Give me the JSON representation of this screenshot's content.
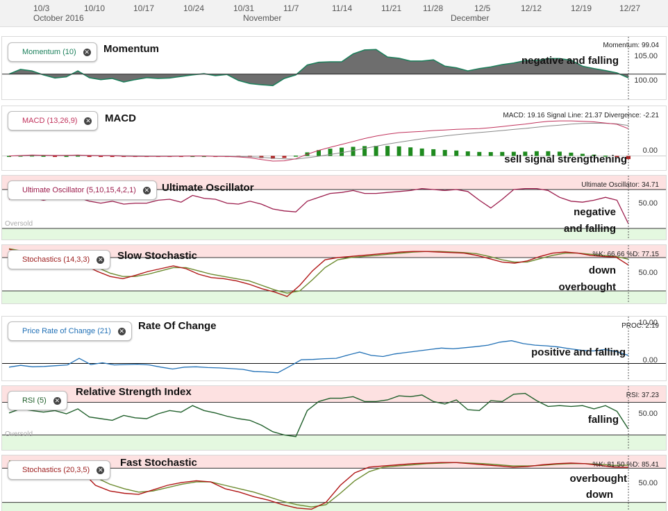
{
  "top_axis": {
    "ticks": [
      "10/3",
      "10/10",
      "10/17",
      "10/24",
      "10/31",
      "11/7",
      "11/14",
      "11/21",
      "11/28",
      "12/5",
      "12/12",
      "12/19",
      "12/27"
    ],
    "months": [
      "October 2016",
      "November",
      "December"
    ]
  },
  "panels": {
    "momentum": {
      "chip": "Momentum (10)",
      "title": "Momentum",
      "readout": "Momentum: 99.04",
      "note": "negative and falling",
      "ylabels": [
        "105.00",
        "100.00"
      ],
      "color": "#1a7f5a"
    },
    "macd": {
      "chip": "MACD (13,26,9)",
      "title": "MACD",
      "readout": "MACD: 19.16 Signal Line: 21.37 Divergence: -2.21",
      "note": "sell signal strengthening",
      "ylabels": [
        "0.00"
      ],
      "color": "#c0305a"
    },
    "ultimate": {
      "chip": "Ultimate Oscillator (5,10,15,4,2,1)",
      "title": "Ultimate Oscillator",
      "readout": "Ultimate Oscillator: 34.71",
      "note_lines": [
        "negative",
        "and falling"
      ],
      "ylabels": [
        "50.00"
      ],
      "zone": "Oversold",
      "color": "#9b1b4b"
    },
    "slowstoch": {
      "chip": "Stochastics (14,3,3)",
      "title": "Slow Stochastic",
      "readout": "%K: 66.66 %D: 77.15",
      "note_lines": [
        "down",
        "overbought"
      ],
      "ylabels": [
        "50.00"
      ],
      "color": "#9b1b1b"
    },
    "proc": {
      "chip": "Price Rate of Change (21)",
      "title": "Rate Of Change",
      "readout": "PROC: 2.19",
      "note": "positive and falling",
      "ylabels": [
        "10.00",
        "0.00"
      ],
      "color": "#1f6fb5"
    },
    "rsi": {
      "chip": "RSI (5)",
      "title": "Relative Strength Index",
      "readout": "RSI: 37.23",
      "note": "falling",
      "ylabels": [
        "50.00"
      ],
      "zone": "Oversold",
      "color": "#1f5f2a"
    },
    "faststoch": {
      "chip": "Stochastics (20,3,5)",
      "title": "Fast Stochastic",
      "readout": "%K: 81.50 %D: 85.41",
      "note_lines": [
        "overbought",
        "down"
      ],
      "ylabels": [
        "50.00"
      ],
      "color": "#9b1b1b"
    }
  },
  "chart_data": [
    {
      "type": "area",
      "name": "Momentum (10)",
      "ylim": [
        94,
        108
      ],
      "baseline": 100,
      "values": [
        100,
        101.2,
        100.8,
        99.8,
        99.0,
        99.3,
        100.8,
        99.1,
        98.6,
        98.9,
        98.0,
        98.6,
        99.1,
        98.9,
        99.0,
        99.4,
        99.8,
        100.1,
        99.6,
        99.9,
        98.4,
        97.6,
        97.3,
        97.1,
        98.9,
        99.8,
        102.3,
        103.0,
        103.1,
        103.1,
        105.1,
        106.1,
        106.2,
        104.3,
        104.0,
        103.3,
        103.3,
        103.6,
        102.0,
        101.6,
        100.8,
        101.4,
        101.8,
        102.4,
        102.8,
        103.4,
        103.4,
        103.9,
        103.9,
        103.5,
        102.0,
        101.4,
        100.9,
        100.3,
        99.04
      ]
    },
    {
      "type": "line",
      "name": "MACD (13,26,9)",
      "ylim": [
        -8,
        30
      ],
      "series": [
        {
          "name": "MACD",
          "values": [
            0,
            0.3,
            0.6,
            0.5,
            0.3,
            0.4,
            0.6,
            0.3,
            0.1,
            0.1,
            -0.2,
            -0.3,
            -0.3,
            -0.3,
            -0.3,
            -0.2,
            -0.1,
            -0.1,
            -0.3,
            -0.4,
            -0.7,
            -1.3,
            -2.5,
            -3.6,
            -3.4,
            -2,
            1.2,
            3.9,
            6.1,
            8.1,
            10.1,
            12.2,
            13.9,
            15.3,
            16.3,
            16.8,
            17.2,
            17.8,
            18.2,
            18.7,
            18.9,
            19.2,
            19.8,
            20.6,
            21.5,
            22.3,
            23.4,
            24.3,
            24.6,
            24.6,
            24.3,
            23.9,
            23.1,
            22.2,
            19.16
          ]
        },
        {
          "name": "Signal Line",
          "values": [
            0,
            0.1,
            0.3,
            0.4,
            0.4,
            0.4,
            0.4,
            0.4,
            0.3,
            0.3,
            0.2,
            0.1,
            0.0,
            -0.1,
            -0.1,
            -0.1,
            -0.1,
            -0.1,
            -0.2,
            -0.2,
            -0.4,
            -0.6,
            -1.0,
            -1.6,
            -2.0,
            -2.2,
            -1.3,
            -0.2,
            1.0,
            2.3,
            3.7,
            5.3,
            6.8,
            8.3,
            9.6,
            10.8,
            12.0,
            13.1,
            14.0,
            14.9,
            15.7,
            16.4,
            17.1,
            17.8,
            18.6,
            19.3,
            20.1,
            21.0,
            21.6,
            22.3,
            22.8,
            23.0,
            22.9,
            22.5,
            21.37
          ]
        },
        {
          "name": "Divergence",
          "values": [
            0,
            0.2,
            0.3,
            0.1,
            -0.1,
            0,
            0.2,
            -0.1,
            -0.2,
            -0.2,
            -0.4,
            -0.4,
            -0.3,
            -0.2,
            -0.2,
            -0.1,
            0,
            0,
            -0.1,
            -0.2,
            -0.3,
            -0.7,
            -1.5,
            -2.0,
            -1.4,
            0.2,
            2.5,
            4.1,
            5.1,
            5.8,
            6.4,
            6.9,
            7.1,
            7.0,
            6.7,
            6.0,
            5.2,
            4.7,
            4.2,
            3.8,
            3.2,
            2.8,
            2.7,
            2.8,
            2.9,
            3.0,
            3.3,
            3.3,
            3.0,
            2.3,
            1.5,
            0.9,
            0.2,
            -0.3,
            -2.21
          ]
        }
      ]
    },
    {
      "type": "line",
      "name": "Ultimate Oscillator (5,10,15,4,2,1)",
      "ylim": [
        20,
        80
      ],
      "values": [
        60,
        64,
        62,
        59,
        62,
        60,
        62,
        58,
        56,
        58,
        55,
        56,
        56,
        59,
        60,
        57,
        64,
        61,
        60,
        56,
        55,
        58,
        55,
        50,
        48,
        47,
        58,
        62,
        66,
        67,
        69,
        66,
        66,
        67,
        68,
        69,
        71,
        70,
        69,
        70,
        68,
        59,
        51,
        60,
        70,
        71,
        71,
        69,
        62,
        58,
        57,
        59,
        62,
        59,
        34.71
      ]
    },
    {
      "type": "line",
      "name": "Stochastics (14,3,3)",
      "ylim": [
        0,
        100
      ],
      "series": [
        {
          "name": "%K",
          "values": [
            95,
            90,
            82,
            80,
            78,
            72,
            66,
            55,
            46,
            42,
            48,
            55,
            60,
            65,
            60,
            50,
            44,
            42,
            38,
            32,
            24,
            18,
            10,
            30,
            56,
            76,
            80,
            82,
            84,
            86,
            88,
            90,
            91,
            91,
            90,
            89,
            88,
            84,
            78,
            72,
            70,
            74,
            82,
            88,
            90,
            88,
            84,
            82,
            81,
            66.66
          ]
        },
        {
          "name": "%D",
          "values": [
            96,
            92,
            86,
            82,
            80,
            76,
            70,
            62,
            52,
            46,
            46,
            50,
            56,
            62,
            62,
            56,
            50,
            46,
            42,
            38,
            30,
            22,
            16,
            20,
            40,
            62,
            76,
            80,
            82,
            84,
            86,
            88,
            90,
            91,
            91,
            90,
            89,
            87,
            82,
            76,
            72,
            72,
            78,
            84,
            88,
            88,
            86,
            84,
            82,
            77.15
          ]
        }
      ]
    },
    {
      "type": "line",
      "name": "Price Rate of Change (21)",
      "ylim": [
        -5,
        12
      ],
      "values": [
        -1.0,
        -0.5,
        -0.9,
        -0.8,
        -0.6,
        -0.4,
        1.4,
        -0.3,
        0.2,
        -0.4,
        -0.3,
        -0.2,
        -0.4,
        -1.0,
        -1.5,
        -1.0,
        -0.9,
        -1.1,
        -1.2,
        -1.4,
        -1.6,
        -2.2,
        -2.3,
        -2.5,
        -0.8,
        1.0,
        1.1,
        1.3,
        1.4,
        2.3,
        3.1,
        2.2,
        1.9,
        2.6,
        3.0,
        3.4,
        3.8,
        4.2,
        4.0,
        4.3,
        4.6,
        5.0,
        5.8,
        6.2,
        5.4,
        5.0,
        4.8,
        4.5,
        4.0,
        3.6,
        3.4,
        3.8,
        3.2,
        2.19
      ]
    },
    {
      "type": "line",
      "name": "RSI (5)",
      "ylim": [
        10,
        90
      ],
      "values": [
        57,
        62,
        60,
        58,
        60,
        56,
        62,
        52,
        50,
        48,
        54,
        51,
        50,
        56,
        60,
        58,
        66,
        60,
        57,
        53,
        50,
        48,
        42,
        34,
        30,
        28,
        60,
        71,
        75,
        75,
        77,
        71,
        71,
        73,
        78,
        77,
        79,
        71,
        68,
        73,
        61,
        60,
        72,
        71,
        80,
        81,
        72,
        65,
        66,
        65,
        66,
        62,
        66,
        59,
        37.23
      ]
    },
    {
      "type": "line",
      "name": "Stochastics (20,3,5)",
      "ylim": [
        0,
        100
      ],
      "series": [
        {
          "name": "%K",
          "values": [
            92,
            90,
            88,
            84,
            80,
            76,
            50,
            40,
            36,
            34,
            42,
            50,
            55,
            58,
            56,
            44,
            38,
            30,
            24,
            16,
            10,
            8,
            20,
            50,
            72,
            82,
            84,
            86,
            88,
            89,
            90,
            90,
            88,
            86,
            84,
            82,
            83,
            86,
            88,
            89,
            88,
            85,
            82,
            81.5
          ]
        },
        {
          "name": "%D",
          "values": [
            93,
            91,
            89,
            86,
            82,
            78,
            64,
            52,
            44,
            38,
            40,
            46,
            52,
            56,
            56,
            50,
            44,
            38,
            30,
            22,
            16,
            12,
            16,
            36,
            58,
            74,
            82,
            84,
            86,
            88,
            89,
            90,
            89,
            88,
            86,
            84,
            84,
            85,
            87,
            88,
            88,
            87,
            85,
            85.41
          ]
        }
      ]
    }
  ]
}
